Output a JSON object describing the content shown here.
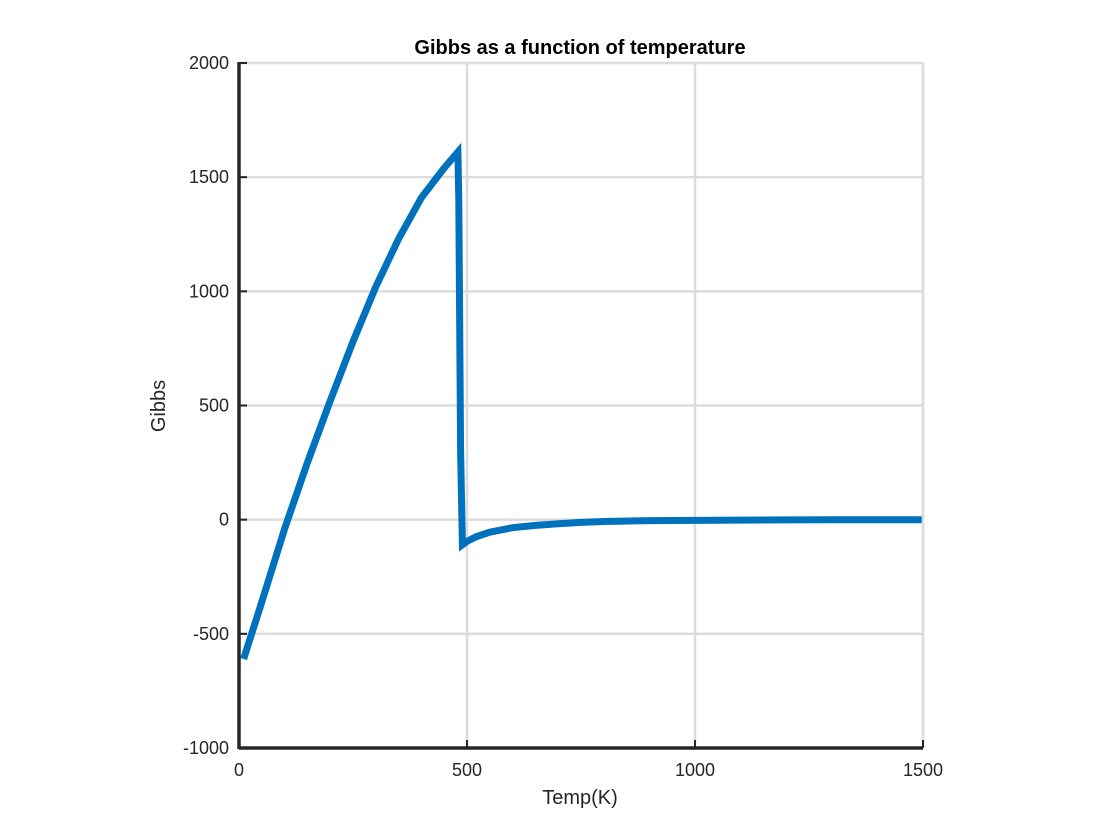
{
  "chart_data": {
    "type": "line",
    "title": "Gibbs as a function of temperature",
    "xlabel": "Temp(K)",
    "ylabel": "Gibbs",
    "xlim": [
      0,
      1500
    ],
    "ylim": [
      -1000,
      2000
    ],
    "xticks": [
      0,
      500,
      1000,
      1500
    ],
    "yticks": [
      -1000,
      -500,
      0,
      500,
      1000,
      1500,
      2000
    ],
    "xtick_labels": [
      "0",
      "500",
      "1000",
      "1500"
    ],
    "ytick_labels": [
      "-1000",
      "-500",
      "0",
      "500",
      "1000",
      "1500",
      "2000"
    ],
    "grid": true,
    "line_color": "#0072BD",
    "series": [
      {
        "x": [
          10,
          50,
          100,
          150,
          200,
          250,
          300,
          350,
          400,
          450,
          480,
          482,
          486,
          490,
          500,
          520,
          550,
          600,
          650,
          700,
          750,
          800,
          900,
          1000,
          1100,
          1200,
          1300,
          1400,
          1500
        ],
        "y": [
          -610,
          -360,
          -40,
          250,
          520,
          780,
          1020,
          1230,
          1410,
          1540,
          1610,
          1400,
          300,
          -110,
          -95,
          -75,
          -55,
          -35,
          -25,
          -18,
          -12,
          -8,
          -4,
          -3,
          -2,
          -1,
          0,
          0,
          0
        ]
      }
    ]
  }
}
